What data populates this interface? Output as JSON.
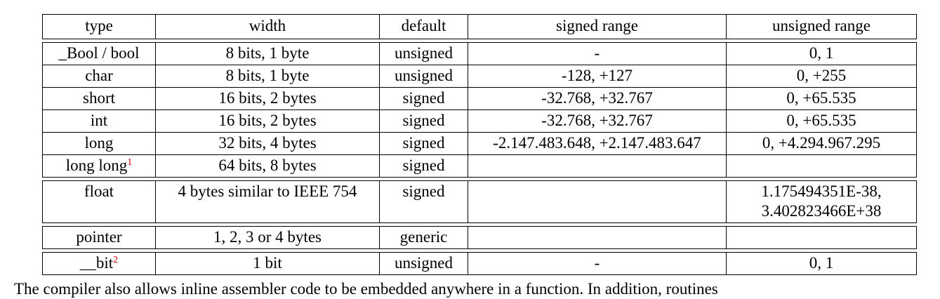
{
  "table": {
    "headers": [
      "type",
      "width",
      "default",
      "signed range",
      "unsigned range"
    ],
    "group1": [
      {
        "type": "_Bool / bool",
        "width": "8 bits, 1 byte",
        "default": "unsigned",
        "signed": "-",
        "unsigned": "0, 1"
      },
      {
        "type": "char",
        "width": "8 bits, 1 byte",
        "default": "unsigned",
        "signed": "-128, +127",
        "unsigned": "0, +255"
      },
      {
        "type": "short",
        "width": "16 bits, 2 bytes",
        "default": "signed",
        "signed": "-32.768, +32.767",
        "unsigned": "0, +65.535"
      },
      {
        "type": "int",
        "width": "16 bits, 2 bytes",
        "default": "signed",
        "signed": "-32.768, +32.767",
        "unsigned": "0, +65.535"
      },
      {
        "type": "long",
        "width": "32 bits, 4 bytes",
        "default": "signed",
        "signed": "-2.147.483.648, +2.147.483.647",
        "unsigned": "0, +4.294.967.295"
      },
      {
        "type": "long long",
        "footnote": "1",
        "width": "64 bits, 8 bytes",
        "default": "signed",
        "signed": "",
        "unsigned": ""
      }
    ],
    "float_row": {
      "type": "float",
      "width": "4 bytes similar to IEEE 754",
      "default": "signed",
      "signed": "",
      "unsigned_line1": "1.175494351E-38,",
      "unsigned_line2": "3.402823466E+38"
    },
    "pointer_row": {
      "type": "pointer",
      "width": "1, 2, 3 or 4 bytes",
      "default": "generic",
      "signed": "",
      "unsigned": ""
    },
    "bit_row": {
      "type": "__bit",
      "footnote": "2",
      "width": "1 bit",
      "default": "unsigned",
      "signed": "-",
      "unsigned": "0, 1"
    }
  },
  "trailing_text": "The compiler also allows inline assembler code to be embedded anywhere in a function. In addition, routines"
}
